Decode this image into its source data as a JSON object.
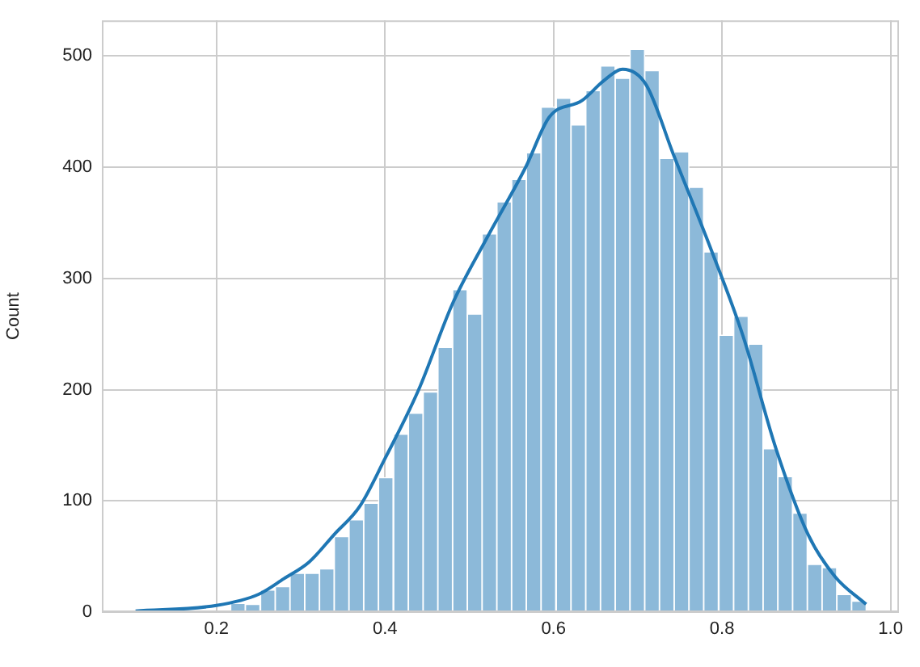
{
  "chart_data": {
    "type": "histogram",
    "ylabel": "Count",
    "bins": [
      0.094,
      0.112,
      0.129,
      0.147,
      0.164,
      0.182,
      0.199,
      0.217,
      0.234,
      0.252,
      0.27,
      0.287,
      0.305,
      0.322,
      0.34,
      0.357,
      0.375,
      0.392,
      0.41,
      0.428,
      0.445,
      0.463,
      0.48,
      0.498,
      0.515,
      0.533,
      0.55,
      0.568,
      0.585,
      0.603,
      0.621,
      0.638,
      0.656,
      0.673,
      0.691,
      0.708,
      0.726,
      0.743,
      0.761,
      0.778,
      0.796,
      0.814,
      0.831,
      0.849,
      0.866,
      0.884,
      0.901,
      0.919,
      0.936,
      0.954,
      0.971
    ],
    "values": [
      0,
      0,
      0,
      0,
      0,
      1,
      null,
      8,
      7,
      20,
      23,
      35,
      35,
      39,
      68,
      83,
      98,
      121,
      160,
      179,
      198,
      238,
      290,
      268,
      340,
      369,
      389,
      413,
      454,
      462,
      438,
      469,
      491,
      480,
      506,
      487,
      408,
      414,
      382,
      324,
      249,
      266,
      241,
      147,
      122,
      89,
      43,
      40,
      16,
      10
    ],
    "color": "#8cb9d9",
    "series": [
      {
        "type": "line",
        "color": "#1f77b4",
        "x": [
          0.104,
          0.2,
          0.25,
          0.28,
          0.31,
          0.34,
          0.37,
          0.4,
          0.44,
          0.48,
          0.52,
          0.567,
          0.595,
          0.634,
          0.66,
          0.682,
          0.71,
          0.742,
          0.787,
          0.825,
          0.864,
          0.902,
          0.934,
          0.971
        ],
        "values": [
          1,
          6,
          16,
          30,
          45,
          70,
          95,
          138,
          200,
          277,
          335,
          400,
          445,
          460,
          478,
          488,
          474,
          412,
          326,
          248,
          147,
          70,
          32,
          7
        ]
      }
    ],
    "xlim": [
      0.064,
      1.01
    ],
    "xticks": [
      0.2,
      0.4,
      0.6,
      0.8,
      {
        "value": 1,
        "label": "1.0"
      }
    ],
    "ylim": [
      0,
      532
    ],
    "yticks": [
      0,
      100,
      200,
      300,
      400,
      500
    ],
    "grid": true,
    "legend": false
  }
}
